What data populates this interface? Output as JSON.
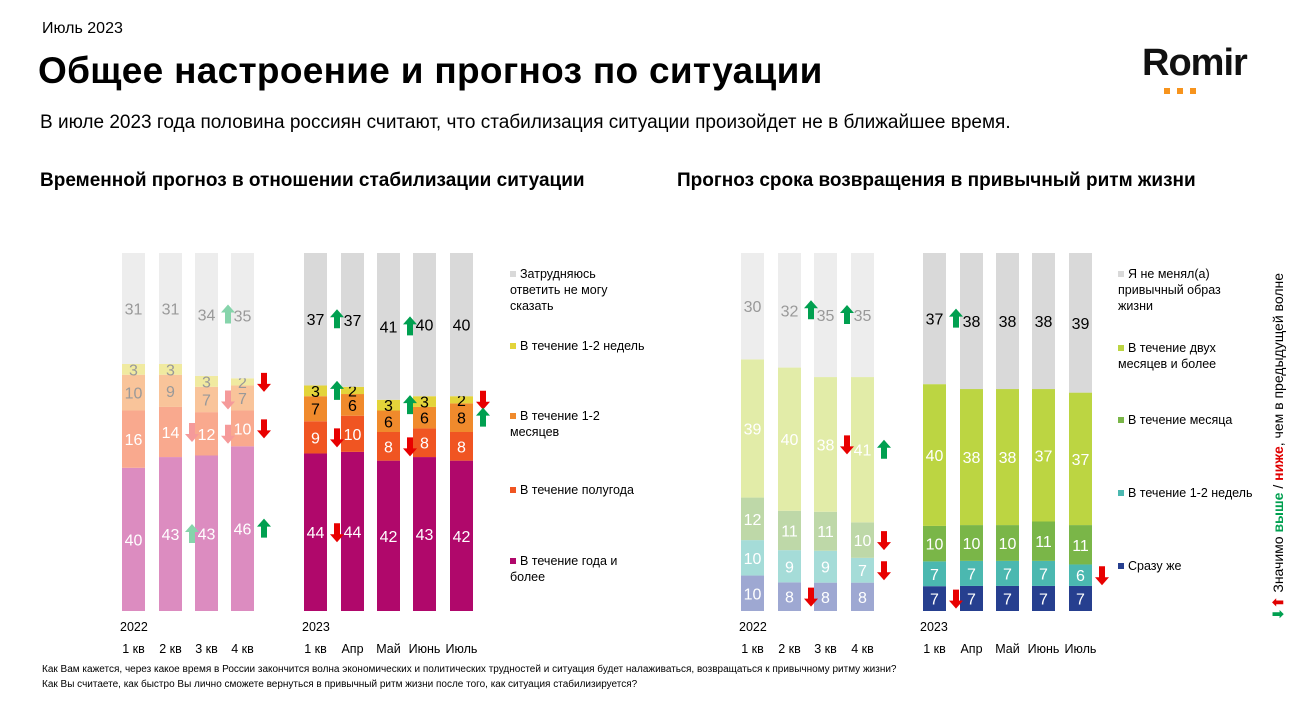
{
  "header": {
    "date": "Июль 2023",
    "title": "Общее настроение и прогноз по ситуации",
    "subtitle": "В июле 2023 года половина россиян считают, что стабилизация ситуации произойдет не в ближайшее время.",
    "logo": "Romir"
  },
  "significance_note": {
    "prefix": "Значимо ",
    "higher": "выше",
    "sep": " / ",
    "lower": "ниже",
    "suffix": ", чем в предыдущей волне"
  },
  "footnotes": [
    "Как Вам кажется, через какое время в России закончится волна экономических и политических трудностей и ситуация будет налаживаться, возвращаться к привычному ритму жизни?",
    "Как Вы считаете, как быстро Вы лично сможете вернуться в привычный ритм жизни после того, как ситуация стабилизируется?"
  ],
  "chart_data": [
    {
      "type": "bar",
      "stacked": true,
      "title": "Временной прогноз в отношении стабилизации ситуации",
      "year_labels": [
        "2022",
        "2023"
      ],
      "categories": [
        "1 кв",
        "2 кв",
        "3 кв",
        "4 кв",
        "1 кв",
        "Апр",
        "Май",
        "Июнь",
        "Июль"
      ],
      "series": [
        {
          "name": "В течение года и более",
          "color": "#b0086b",
          "color_2022": "#dc8cc0",
          "values": [
            40,
            43,
            43,
            46,
            44,
            44,
            42,
            43,
            42
          ]
        },
        {
          "name": "В течение полугода",
          "color": "#f05522",
          "color_2022": "#f9a98e",
          "values": [
            16,
            14,
            12,
            10,
            9,
            10,
            8,
            8,
            8
          ]
        },
        {
          "name": "В течение 1-2 месяцев",
          "color": "#f08a2c",
          "color_2022": "#f9c49a",
          "values": [
            10,
            9,
            7,
            7,
            7,
            6,
            6,
            6,
            8
          ]
        },
        {
          "name": "В течение 1-2 недель",
          "color": "#e3d43a",
          "color_2022": "#f0eaa0",
          "values": [
            3,
            3,
            3,
            2,
            3,
            2,
            3,
            3,
            2
          ]
        },
        {
          "name": "Затрудняюсь ответить не могу сказать",
          "color": "#d9d9d9",
          "color_2022": "#ededed",
          "values": [
            31,
            31,
            34,
            35,
            37,
            37,
            41,
            40,
            40
          ]
        }
      ],
      "arrows": [
        {
          "bar": 1,
          "series": 1,
          "dir": "down",
          "faded": true
        },
        {
          "bar": 1,
          "series": 0,
          "dir": "up",
          "faded": true
        },
        {
          "bar": 2,
          "series": 4,
          "dir": "up",
          "faded": true
        },
        {
          "bar": 2,
          "series": 2,
          "dir": "down",
          "faded": true
        },
        {
          "bar": 2,
          "series": 1,
          "dir": "down",
          "faded": true
        },
        {
          "bar": 3,
          "series": 3,
          "dir": "down"
        },
        {
          "bar": 3,
          "series": 1,
          "dir": "down"
        },
        {
          "bar": 3,
          "series": 0,
          "dir": "up"
        },
        {
          "bar": 4,
          "series": 4,
          "dir": "up"
        },
        {
          "bar": 4,
          "series": 3,
          "dir": "up"
        },
        {
          "bar": 4,
          "series": 1,
          "dir": "down"
        },
        {
          "bar": 4,
          "series": 0,
          "dir": "down"
        },
        {
          "bar": 6,
          "series": 4,
          "dir": "up"
        },
        {
          "bar": 6,
          "series": 3,
          "dir": "up"
        },
        {
          "bar": 6,
          "series": 1,
          "dir": "down"
        },
        {
          "bar": 8,
          "series": 3,
          "dir": "down"
        },
        {
          "bar": 8,
          "series": 2,
          "dir": "up"
        }
      ]
    },
    {
      "type": "bar",
      "stacked": true,
      "title": "Прогноз срока возвращения в привычный ритм жизни",
      "year_labels": [
        "2022",
        "2023"
      ],
      "categories": [
        "1 кв",
        "2 кв",
        "3 кв",
        "4 кв",
        "1 кв",
        "Апр",
        "Май",
        "Июнь",
        "Июль"
      ],
      "series": [
        {
          "name": "Сразу же",
          "color": "#263f8f",
          "color_2022": "#9ea8d2",
          "values": [
            10,
            8,
            8,
            8,
            7,
            7,
            7,
            7,
            7
          ]
        },
        {
          "name": "В течение 1-2 недель",
          "color": "#4bb8b0",
          "color_2022": "#a5dcd8",
          "values": [
            10,
            9,
            9,
            7,
            7,
            7,
            7,
            7,
            6
          ]
        },
        {
          "name": "В течение месяца",
          "color": "#7ab648",
          "color_2022": "#bed8a8",
          "values": [
            12,
            11,
            11,
            10,
            10,
            10,
            10,
            11,
            11
          ]
        },
        {
          "name": "В течение двух месяцев и более",
          "color": "#bcd542",
          "color_2022": "#e2eca8",
          "values": [
            39,
            40,
            38,
            41,
            40,
            38,
            38,
            37,
            37
          ]
        },
        {
          "name": "Я не менял(а) привычный образ жизни",
          "color": "#d9d9d9",
          "color_2022": "#ededed",
          "values": [
            30,
            32,
            35,
            35,
            37,
            38,
            38,
            38,
            39
          ]
        }
      ],
      "arrows": [
        {
          "bar": 1,
          "series": 4,
          "dir": "up"
        },
        {
          "bar": 1,
          "series": 0,
          "dir": "down"
        },
        {
          "bar": 2,
          "series": 4,
          "dir": "up"
        },
        {
          "bar": 2,
          "series": 3,
          "dir": "down"
        },
        {
          "bar": 3,
          "series": 3,
          "dir": "up"
        },
        {
          "bar": 3,
          "series": 2,
          "dir": "down"
        },
        {
          "bar": 3,
          "series": 1,
          "dir": "down"
        },
        {
          "bar": 4,
          "series": 4,
          "dir": "up"
        },
        {
          "bar": 4,
          "series": 0,
          "dir": "down"
        },
        {
          "bar": 8,
          "series": 1,
          "dir": "down"
        }
      ]
    }
  ]
}
